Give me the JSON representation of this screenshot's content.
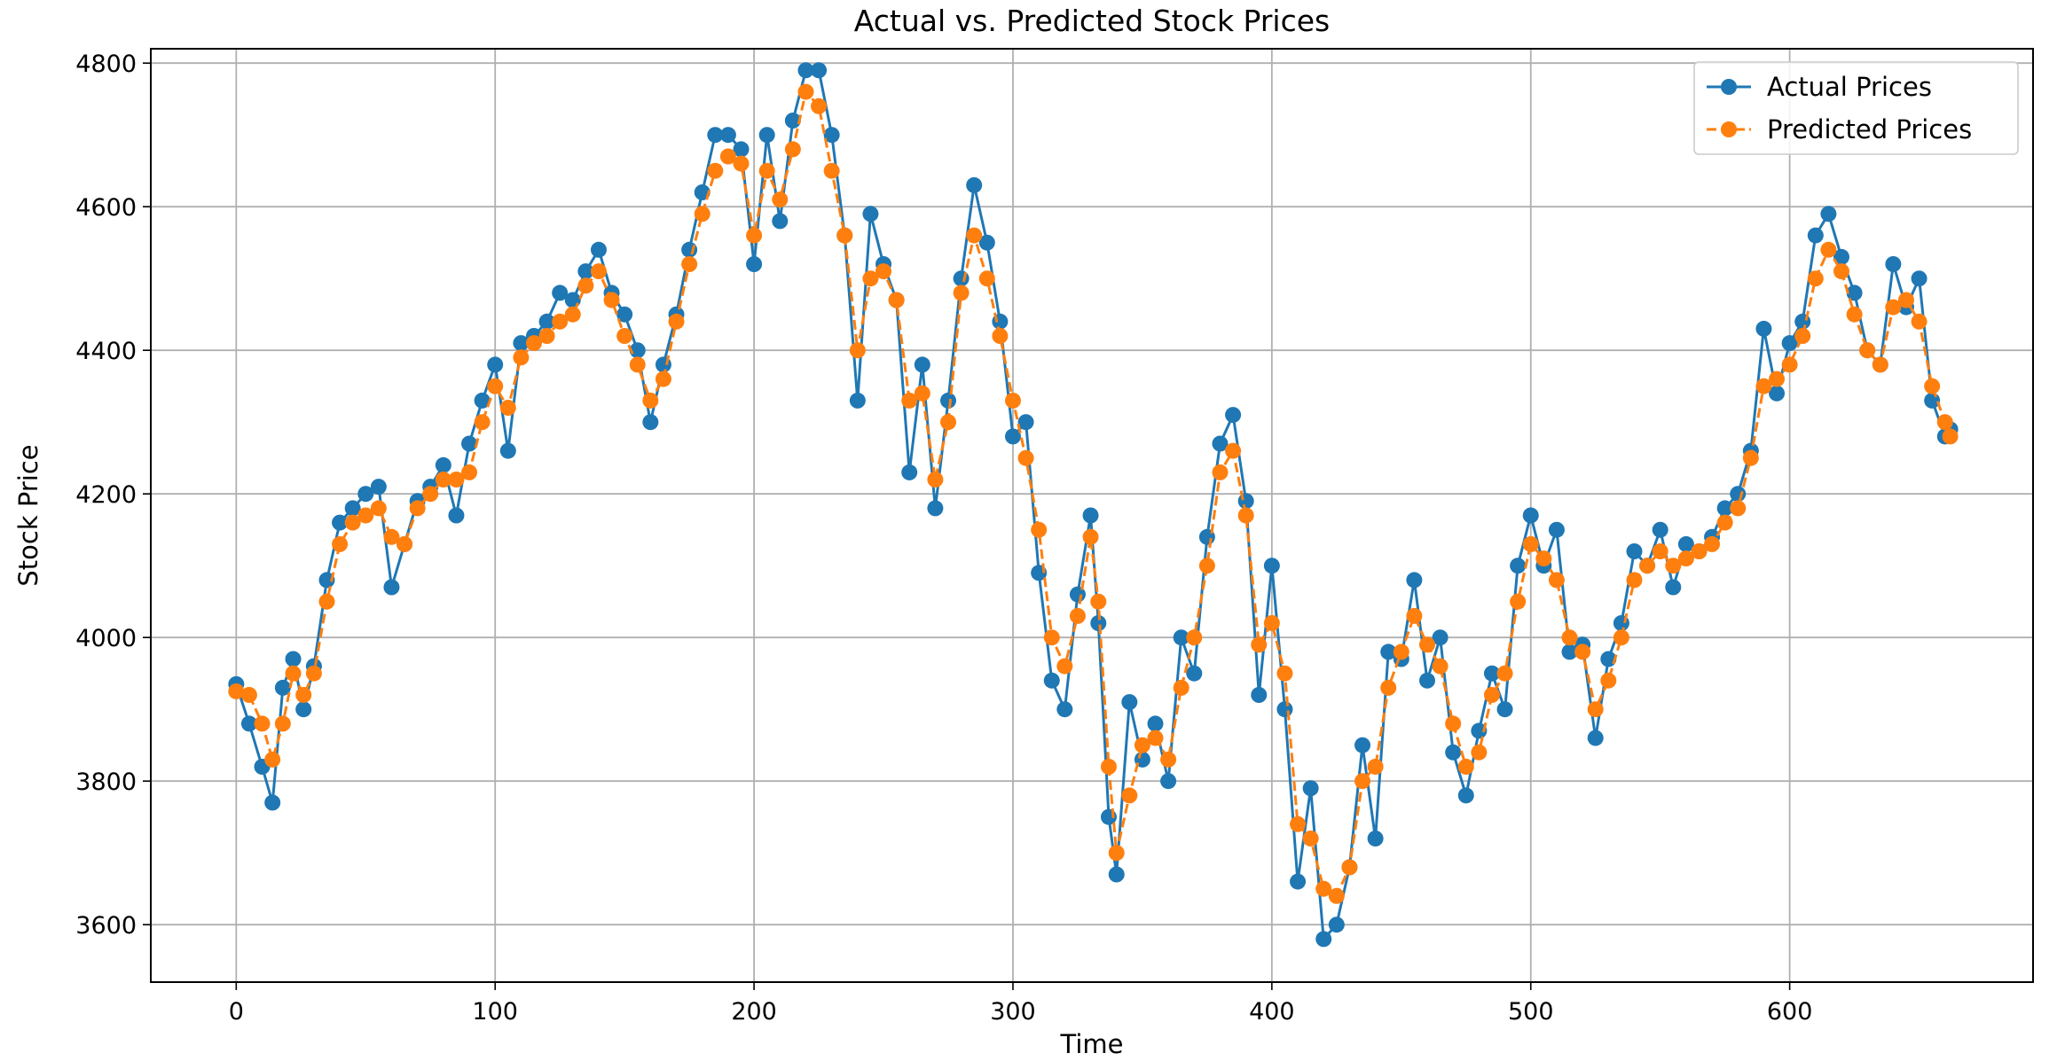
{
  "chart_data": {
    "type": "line",
    "title": "Actual vs. Predicted Stock Prices",
    "xlabel": "Time",
    "ylabel": "Stock Price",
    "xlim": [
      -33,
      694
    ],
    "ylim": [
      3520,
      4820
    ],
    "xticks": [
      0,
      100,
      200,
      300,
      400,
      500,
      600
    ],
    "yticks": [
      3600,
      3800,
      4000,
      4200,
      4400,
      4600,
      4800
    ],
    "grid": true,
    "legend_position": "top-right",
    "series": [
      {
        "name": "Actual Prices",
        "color": "#1f77b4",
        "line_style": "solid",
        "marker": "circle",
        "x": [
          0,
          5,
          10,
          14,
          18,
          22,
          26,
          30,
          35,
          40,
          45,
          50,
          55,
          60,
          65,
          70,
          75,
          80,
          85,
          90,
          95,
          100,
          105,
          110,
          115,
          120,
          125,
          130,
          135,
          140,
          145,
          150,
          155,
          160,
          165,
          170,
          175,
          180,
          185,
          190,
          195,
          200,
          205,
          210,
          215,
          220,
          225,
          230,
          235,
          240,
          245,
          250,
          255,
          260,
          265,
          270,
          275,
          280,
          285,
          290,
          295,
          300,
          305,
          310,
          315,
          320,
          325,
          330,
          333,
          337,
          340,
          345,
          350,
          355,
          360,
          365,
          370,
          375,
          380,
          385,
          390,
          395,
          400,
          405,
          410,
          415,
          420,
          425,
          430,
          435,
          440,
          445,
          450,
          455,
          460,
          465,
          470,
          475,
          480,
          485,
          490,
          495,
          500,
          505,
          510,
          515,
          520,
          525,
          530,
          535,
          540,
          545,
          550,
          555,
          560,
          565,
          570,
          575,
          580,
          585,
          590,
          595,
          600,
          605,
          610,
          615,
          620,
          625,
          630,
          635,
          640,
          645,
          650,
          655,
          660,
          662
        ],
        "y": [
          3935,
          3880,
          3820,
          3770,
          3930,
          3970,
          3900,
          3960,
          4080,
          4160,
          4180,
          4200,
          4210,
          4070,
          4130,
          4190,
          4210,
          4240,
          4170,
          4270,
          4330,
          4380,
          4260,
          4410,
          4420,
          4440,
          4480,
          4470,
          4510,
          4540,
          4480,
          4450,
          4400,
          4300,
          4380,
          4450,
          4540,
          4620,
          4700,
          4700,
          4680,
          4520,
          4700,
          4580,
          4720,
          4790,
          4790,
          4700,
          4560,
          4330,
          4590,
          4520,
          4470,
          4230,
          4380,
          4180,
          4330,
          4500,
          4630,
          4550,
          4440,
          4280,
          4300,
          4090,
          3940,
          3900,
          4060,
          4170,
          4020,
          3750,
          3670,
          3910,
          3830,
          3880,
          3800,
          4000,
          3950,
          4140,
          4270,
          4310,
          4190,
          3920,
          4100,
          3900,
          3660,
          3790,
          3580,
          3600,
          3680,
          3850,
          3720,
          3980,
          3970,
          4080,
          3940,
          4000,
          3840,
          3780,
          3870,
          3950,
          3900,
          4100,
          4170,
          4100,
          4150,
          3980,
          3990,
          3860,
          3970,
          4020,
          4120,
          4100,
          4150,
          4070,
          4130,
          4120,
          4140,
          4180,
          4200,
          4260,
          4430,
          4340,
          4410,
          4440,
          4560,
          4590,
          4530,
          4480,
          4400,
          4380,
          4520,
          4460,
          4500,
          4330,
          4280,
          4290
        ]
      },
      {
        "name": "Predicted Prices",
        "color": "#ff7f0e",
        "line_style": "dashed",
        "marker": "circle",
        "x": [
          0,
          5,
          10,
          14,
          18,
          22,
          26,
          30,
          35,
          40,
          45,
          50,
          55,
          60,
          65,
          70,
          75,
          80,
          85,
          90,
          95,
          100,
          105,
          110,
          115,
          120,
          125,
          130,
          135,
          140,
          145,
          150,
          155,
          160,
          165,
          170,
          175,
          180,
          185,
          190,
          195,
          200,
          205,
          210,
          215,
          220,
          225,
          230,
          235,
          240,
          245,
          250,
          255,
          260,
          265,
          270,
          275,
          280,
          285,
          290,
          295,
          300,
          305,
          310,
          315,
          320,
          325,
          330,
          333,
          337,
          340,
          345,
          350,
          355,
          360,
          365,
          370,
          375,
          380,
          385,
          390,
          395,
          400,
          405,
          410,
          415,
          420,
          425,
          430,
          435,
          440,
          445,
          450,
          455,
          460,
          465,
          470,
          475,
          480,
          485,
          490,
          495,
          500,
          505,
          510,
          515,
          520,
          525,
          530,
          535,
          540,
          545,
          550,
          555,
          560,
          565,
          570,
          575,
          580,
          585,
          590,
          595,
          600,
          605,
          610,
          615,
          620,
          625,
          630,
          635,
          640,
          645,
          650,
          655,
          660,
          662
        ],
        "y": [
          3925,
          3920,
          3880,
          3830,
          3880,
          3950,
          3920,
          3950,
          4050,
          4130,
          4160,
          4170,
          4180,
          4140,
          4130,
          4180,
          4200,
          4220,
          4220,
          4230,
          4300,
          4350,
          4320,
          4390,
          4410,
          4420,
          4440,
          4450,
          4490,
          4510,
          4470,
          4420,
          4380,
          4330,
          4360,
          4440,
          4520,
          4590,
          4650,
          4670,
          4660,
          4560,
          4650,
          4610,
          4680,
          4760,
          4740,
          4650,
          4560,
          4400,
          4500,
          4510,
          4470,
          4330,
          4340,
          4220,
          4300,
          4480,
          4560,
          4500,
          4420,
          4330,
          4250,
          4150,
          4000,
          3960,
          4030,
          4140,
          4050,
          3820,
          3700,
          3780,
          3850,
          3860,
          3830,
          3930,
          4000,
          4100,
          4230,
          4260,
          4170,
          3990,
          4020,
          3950,
          3740,
          3720,
          3650,
          3640,
          3680,
          3800,
          3820,
          3930,
          3980,
          4030,
          3990,
          3960,
          3880,
          3820,
          3840,
          3920,
          3950,
          4050,
          4130,
          4110,
          4080,
          4000,
          3980,
          3900,
          3940,
          4000,
          4080,
          4100,
          4120,
          4100,
          4110,
          4120,
          4130,
          4160,
          4180,
          4250,
          4350,
          4360,
          4380,
          4420,
          4500,
          4540,
          4510,
          4450,
          4400,
          4380,
          4460,
          4470,
          4440,
          4350,
          4300,
          4280
        ]
      }
    ]
  }
}
